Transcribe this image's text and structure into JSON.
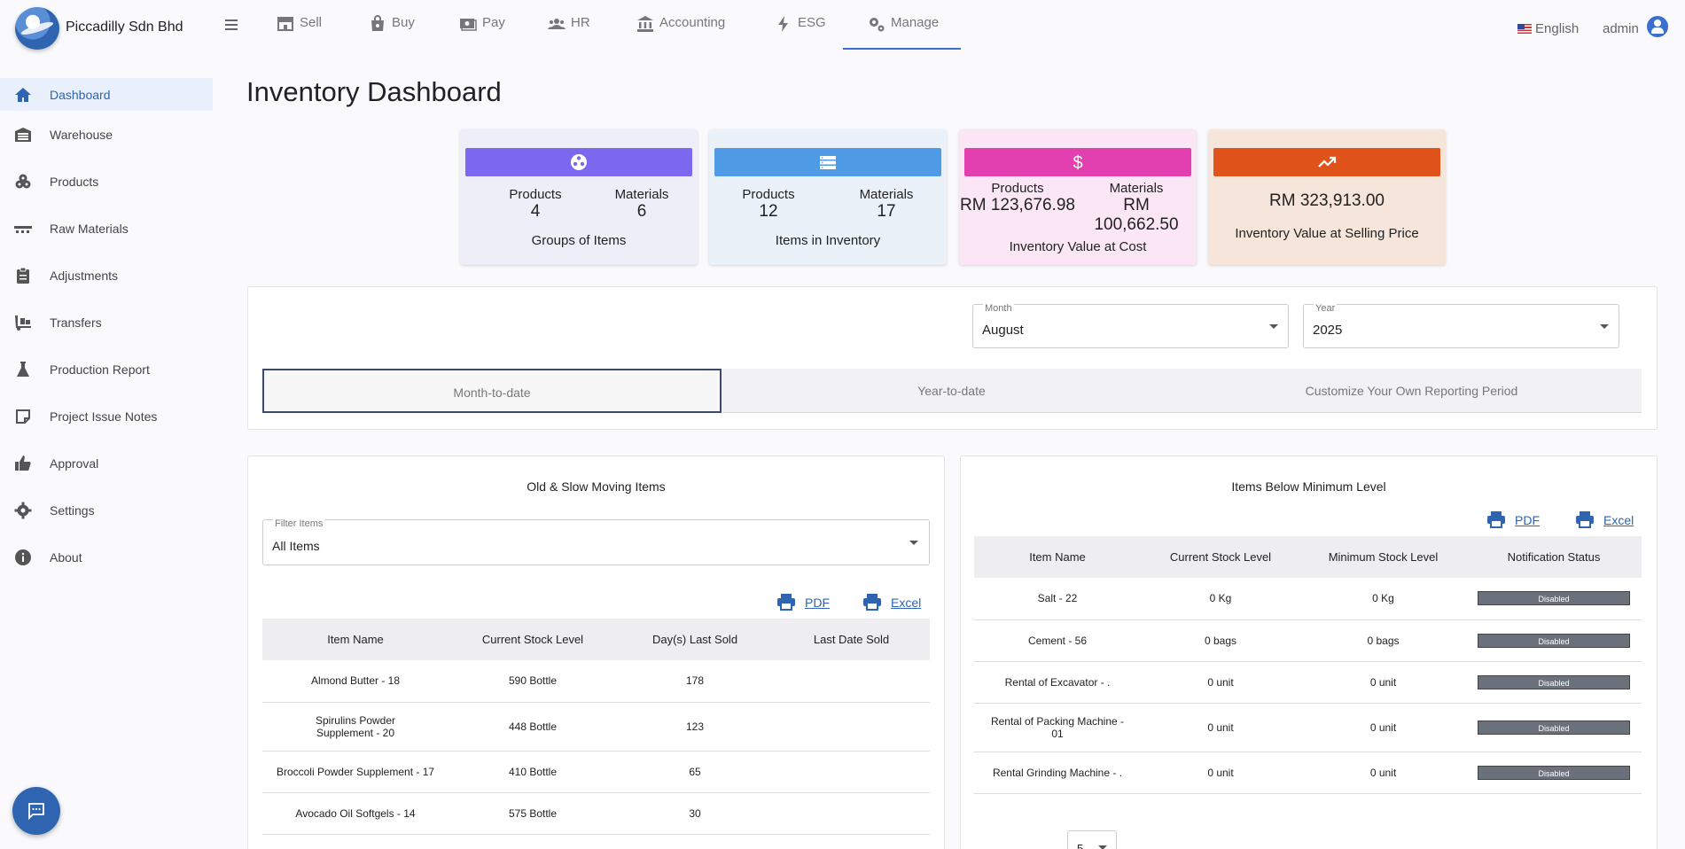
{
  "app": {
    "company_name": "Piccadilly Sdn Bhd"
  },
  "nav": [
    {
      "label": "Sell",
      "icon": "store-icon"
    },
    {
      "label": "Buy",
      "icon": "shopping-bag-icon"
    },
    {
      "label": "Pay",
      "icon": "payment-icon"
    },
    {
      "label": "HR",
      "icon": "people-icon"
    },
    {
      "label": "Accounting",
      "icon": "bank-icon"
    },
    {
      "label": "ESG",
      "icon": "bolt-icon"
    },
    {
      "label": "Manage",
      "icon": "gears-icon",
      "active": true
    }
  ],
  "header": {
    "language": "English",
    "user": "admin"
  },
  "sidebar": {
    "items": [
      {
        "label": "Dashboard",
        "icon": "home-icon",
        "active": true
      },
      {
        "label": "Warehouse",
        "icon": "warehouse-icon"
      },
      {
        "label": "Products",
        "icon": "products-icon"
      },
      {
        "label": "Raw Materials",
        "icon": "raw-materials-icon"
      },
      {
        "label": "Adjustments",
        "icon": "clipboard-icon"
      },
      {
        "label": "Transfers",
        "icon": "dolly-icon"
      },
      {
        "label": "Production Report",
        "icon": "flask-icon"
      },
      {
        "label": "Project Issue Notes",
        "icon": "note-icon"
      },
      {
        "label": "Approval",
        "icon": "thumbs-up-icon"
      },
      {
        "label": "Settings",
        "icon": "gear-icon"
      },
      {
        "label": "About",
        "icon": "info-icon"
      }
    ]
  },
  "page": {
    "title": "Inventory Dashboard"
  },
  "cards": {
    "groups": {
      "products_label": "Products",
      "products_value": "4",
      "materials_label": "Materials",
      "materials_value": "6",
      "caption": "Groups of Items",
      "color": "#7b68ee"
    },
    "inventory": {
      "products_label": "Products",
      "products_value": "12",
      "materials_label": "Materials",
      "materials_value": "17",
      "caption": "Items in Inventory",
      "color": "#4f9be6"
    },
    "cost": {
      "products_label": "Products",
      "products_value": "RM 123,676.98",
      "materials_label": "Materials",
      "materials_value_1": "RM",
      "materials_value_2": "100,662.50",
      "caption": "Inventory Value at Cost",
      "color": "#e23fb0"
    },
    "selling": {
      "value": "RM 323,913.00",
      "caption": "Inventory Value at Selling Price",
      "color": "#e0541c"
    }
  },
  "filters": {
    "month": {
      "label": "Month",
      "value": "August"
    },
    "year": {
      "label": "Year",
      "value": "2025"
    }
  },
  "period_tabs": [
    "Month-to-date",
    "Year-to-date",
    "Customize Your Own Reporting Period"
  ],
  "slow_moving": {
    "title": "Old & Slow Moving Items",
    "filter": {
      "label": "Filter Items",
      "value": "All Items"
    },
    "pdf_label": "PDF",
    "excel_label": "Excel",
    "columns": [
      "Item Name",
      "Current Stock Level",
      "Day(s) Last Sold",
      "Last Date Sold"
    ],
    "rows": [
      {
        "name": "Almond Butter - 18",
        "stock": "590 Bottle",
        "days": "178",
        "last": ""
      },
      {
        "name": "Spirulins Powder Supplement - 20",
        "stock": "448 Bottle",
        "days": "123",
        "last": ""
      },
      {
        "name": "Broccoli Powder Supplement - 17",
        "stock": "410 Bottle",
        "days": "65",
        "last": ""
      },
      {
        "name": "Avocado Oil Softgels - 14",
        "stock": "575 Bottle",
        "days": "30",
        "last": ""
      }
    ]
  },
  "below_min": {
    "title": "Items Below Minimum Level",
    "pdf_label": "PDF",
    "excel_label": "Excel",
    "columns": [
      "Item Name",
      "Current Stock Level",
      "Minimum Stock Level",
      "Notification Status"
    ],
    "rows": [
      {
        "name": "Salt - 22",
        "current": "0 Kg",
        "minimum": "0 Kg",
        "status": "Disabled"
      },
      {
        "name": "Cement - 56",
        "current": "0 bags",
        "minimum": "0 bags",
        "status": "Disabled"
      },
      {
        "name": "Rental of Excavator - .",
        "current": "0 unit",
        "minimum": "0 unit",
        "status": "Disabled"
      },
      {
        "name": "Rental of Packing Machine - 01",
        "current": "0 unit",
        "minimum": "0 unit",
        "status": "Disabled"
      },
      {
        "name": "Rental Grinding Machine - .",
        "current": "0 unit",
        "minimum": "0 unit",
        "status": "Disabled"
      }
    ],
    "rows_per_page_value": "5"
  }
}
